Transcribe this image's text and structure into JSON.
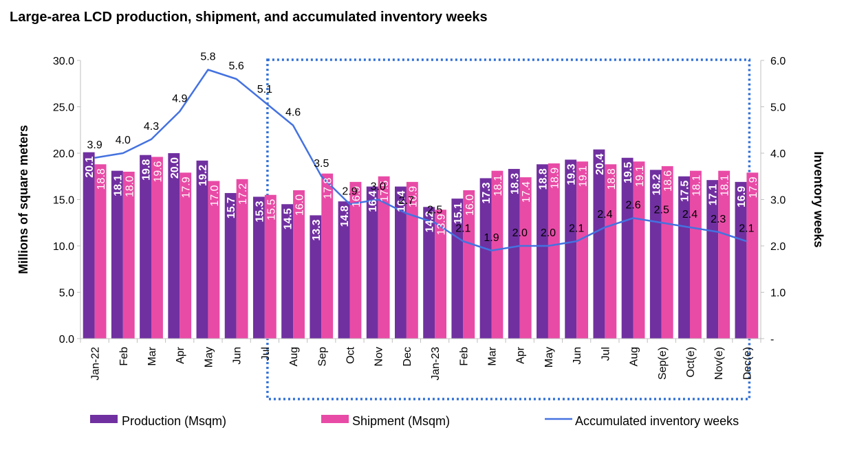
{
  "chart_data": {
    "type": "bar",
    "title": "Large-area LCD production,  shipment, and accumulated inventory weeks",
    "categories": [
      "Jan-22",
      "Feb",
      "Mar",
      "Apr",
      "May",
      "Jun",
      "Jul",
      "Aug",
      "Sep",
      "Oct",
      "Nov",
      "Dec",
      "Jan-23",
      "Feb",
      "Mar",
      "Apr",
      "May",
      "Jun",
      "Jul",
      "Aug",
      "Sep(e)",
      "Oct(e)",
      "Nov(e)",
      "Dec(e)"
    ],
    "series": [
      {
        "name": "Production (Msqm)",
        "type": "bar",
        "axis": "left",
        "color": "#7030A0",
        "values": [
          20.1,
          18.1,
          19.8,
          20.0,
          19.2,
          15.7,
          15.3,
          14.5,
          13.3,
          14.8,
          16.4,
          16.4,
          14.2,
          15.1,
          17.3,
          18.3,
          18.8,
          19.3,
          20.4,
          19.5,
          18.2,
          17.5,
          17.1,
          16.9
        ]
      },
      {
        "name": "Shipment (Msqm)",
        "type": "bar",
        "axis": "left",
        "color": "#E84BA6",
        "values": [
          18.8,
          18.0,
          19.6,
          17.9,
          17.0,
          17.2,
          15.5,
          16.0,
          17.8,
          16.9,
          17.5,
          16.9,
          13.9,
          16.0,
          18.1,
          17.4,
          18.9,
          19.1,
          18.8,
          19.1,
          18.6,
          18.1,
          18.1,
          17.9
        ]
      },
      {
        "name": "Accumulated inventory weeks",
        "type": "line",
        "axis": "right",
        "color": "#4472E0",
        "values": [
          3.9,
          4.0,
          4.3,
          4.9,
          5.8,
          5.6,
          5.1,
          4.6,
          3.5,
          2.9,
          3.0,
          2.7,
          2.5,
          2.1,
          1.9,
          2.0,
          2.0,
          2.1,
          2.4,
          2.6,
          2.5,
          2.4,
          2.3,
          2.1
        ]
      }
    ],
    "ylabel": "Millions of square meters",
    "ylim": [
      0,
      30
    ],
    "yticks": [
      "0.0",
      "5.0",
      "10.0",
      "15.0",
      "20.0",
      "25.0",
      "30.0"
    ],
    "y2label": "Inventory weeks",
    "y2lim": [
      0,
      6
    ],
    "y2ticks": [
      "-",
      "1.0",
      "2.0",
      "3.0",
      "4.0",
      "5.0",
      "6.0"
    ],
    "grid": false,
    "legend_position": "bottom",
    "highlight": {
      "start_category": "Jul",
      "end_category": "Dec(e)",
      "color": "#2F6FD6",
      "style": "dotted"
    }
  }
}
